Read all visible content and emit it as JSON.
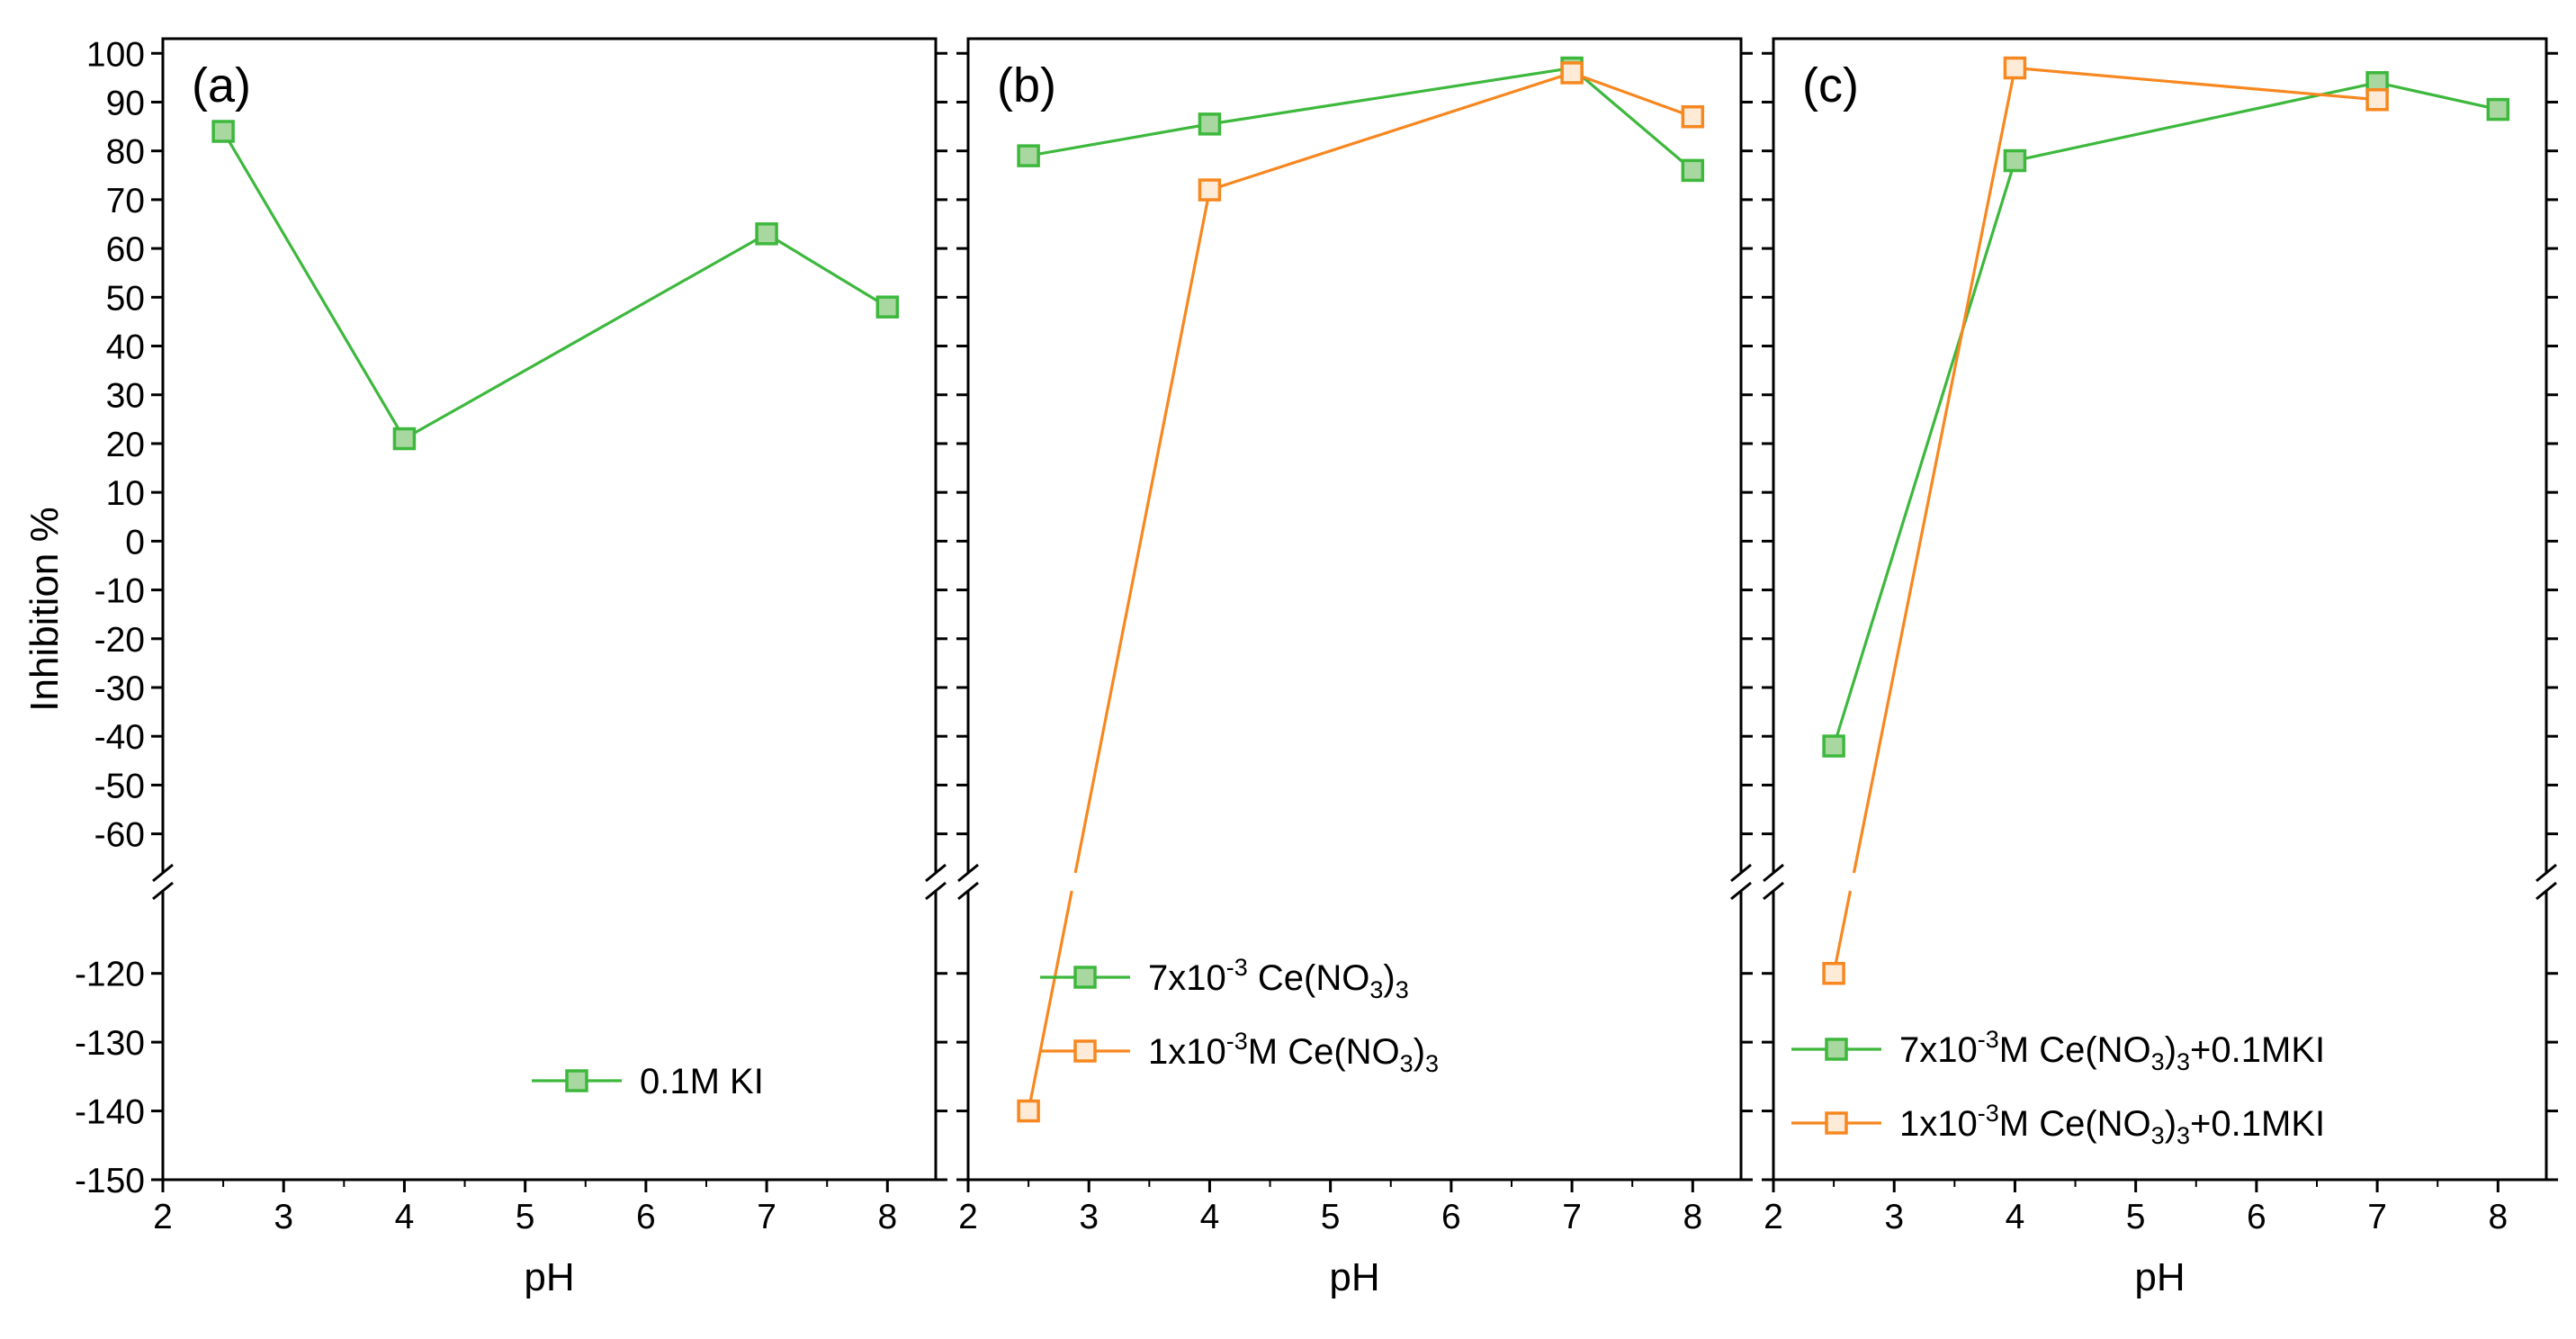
{
  "chart_data": [
    {
      "panel": "(a)",
      "type": "line",
      "xlabel": "pH",
      "ylabel": "Inhibition %",
      "xlim": [
        2,
        8.4
      ],
      "xticks": [
        2,
        3,
        4,
        5,
        6,
        7,
        8
      ],
      "ylim_upper": [
        -68,
        103
      ],
      "ylim_lower": [
        -150,
        -108
      ],
      "yticks_upper": [
        100,
        90,
        80,
        70,
        60,
        50,
        40,
        30,
        20,
        10,
        0,
        -10,
        -20,
        -30,
        -40,
        -50,
        -60
      ],
      "yticks_lower": [
        -120,
        -130,
        -140,
        -150
      ],
      "series": [
        {
          "name": "0.1M KI",
          "color": "#3db83d",
          "fill": "#a8d8a0",
          "x": [
            2.5,
            4,
            7,
            8
          ],
          "y": [
            84,
            21,
            63,
            48
          ]
        }
      ],
      "legend": [
        {
          "parts": [
            {
              "t": "0.1M KI"
            }
          ]
        }
      ]
    },
    {
      "panel": "(b)",
      "type": "line",
      "xlabel": "pH",
      "xlim": [
        2,
        8.4
      ],
      "xticks": [
        2,
        3,
        4,
        5,
        6,
        7,
        8
      ],
      "series": [
        {
          "name": "7x10-3 Ce(NO3)3",
          "color": "#3db83d",
          "fill": "#a8d8a0",
          "x": [
            2.5,
            4,
            7,
            8
          ],
          "y": [
            79,
            85.5,
            97,
            76
          ]
        },
        {
          "name": "1x10-3M Ce(NO3)3",
          "color": "#f7871f",
          "fill": "#fdebd8",
          "x": [
            2.5,
            4,
            7,
            8
          ],
          "y": [
            -140,
            72,
            96,
            87
          ]
        }
      ],
      "legend": [
        {
          "parts": [
            {
              "t": "7x10"
            },
            {
              "t": "-3",
              "s": "sup"
            },
            {
              "t": " Ce(NO"
            },
            {
              "t": "3",
              "s": "sub"
            },
            {
              "t": ")"
            },
            {
              "t": "3",
              "s": "sub"
            }
          ]
        },
        {
          "parts": [
            {
              "t": "1x10"
            },
            {
              "t": "-3",
              "s": "sup"
            },
            {
              "t": "M Ce(NO"
            },
            {
              "t": "3",
              "s": "sub"
            },
            {
              "t": ")"
            },
            {
              "t": "3",
              "s": "sub"
            }
          ]
        }
      ]
    },
    {
      "panel": "(c)",
      "type": "line",
      "xlabel": "pH",
      "xlim": [
        2,
        8.4
      ],
      "xticks": [
        2,
        3,
        4,
        5,
        6,
        7,
        8
      ],
      "series": [
        {
          "name": "7x10-3M Ce(NO3)3+0.1MKI",
          "color": "#3db83d",
          "fill": "#a8d8a0",
          "x": [
            2.5,
            4,
            7,
            8
          ],
          "y": [
            -42,
            78,
            94,
            88.5
          ]
        },
        {
          "name": "1x10-3M Ce(NO3)3+0.1MKI",
          "color": "#f7871f",
          "fill": "#fdebd8",
          "x": [
            2.5,
            4,
            7
          ],
          "y": [
            -120,
            97,
            90.5
          ]
        }
      ],
      "legend": [
        {
          "parts": [
            {
              "t": "7x10"
            },
            {
              "t": "-3",
              "s": "sup"
            },
            {
              "t": "M Ce(NO"
            },
            {
              "t": "3",
              "s": "sub"
            },
            {
              "t": ")"
            },
            {
              "t": "3",
              "s": "sub"
            },
            {
              "t": "+0.1MKI"
            }
          ]
        },
        {
          "parts": [
            {
              "t": "1x10"
            },
            {
              "t": "-3",
              "s": "sup"
            },
            {
              "t": "M Ce(NO"
            },
            {
              "t": "3",
              "s": "sub"
            },
            {
              "t": ")"
            },
            {
              "t": "3",
              "s": "sub"
            },
            {
              "t": "+0.1MKI"
            }
          ]
        }
      ]
    }
  ]
}
